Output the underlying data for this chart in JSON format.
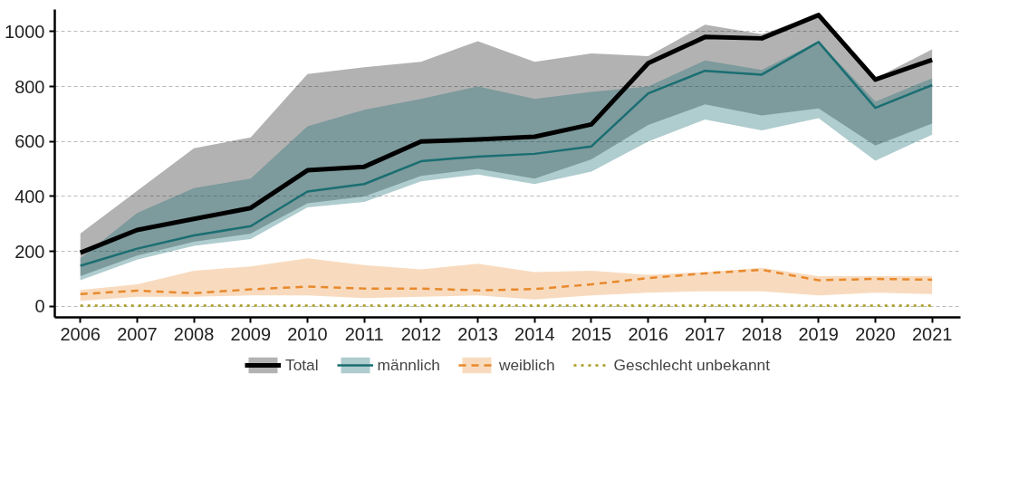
{
  "chart_data": {
    "type": "line",
    "x": [
      2006,
      2007,
      2008,
      2009,
      2010,
      2011,
      2012,
      2013,
      2014,
      2015,
      2016,
      2017,
      2018,
      2019,
      2020,
      2021
    ],
    "xlim": [
      2005.55,
      2021.5
    ],
    "xticks": [
      2006,
      2007,
      2008,
      2009,
      2010,
      2011,
      2012,
      2013,
      2014,
      2015,
      2016,
      2017,
      2018,
      2019,
      2020,
      2021
    ],
    "ylim": [
      -40,
      1080
    ],
    "yticks": [
      0,
      200,
      400,
      600,
      800,
      1000
    ],
    "grid": "y",
    "legend": "bottom",
    "series": [
      {
        "name": "Total",
        "color": "#000000",
        "line_style": "solid",
        "values": [
          195,
          278,
          318,
          358,
          495,
          508,
          600,
          607,
          617,
          662,
          885,
          980,
          975,
          1060,
          825,
          897
        ],
        "lower": [
          110,
          185,
          235,
          265,
          375,
          400,
          475,
          500,
          465,
          535,
          660,
          735,
          695,
          720,
          585,
          665
        ],
        "upper": [
          265,
          420,
          575,
          615,
          845,
          870,
          890,
          965,
          890,
          920,
          910,
          1025,
          990,
          1060,
          830,
          935
        ]
      },
      {
        "name": "männlich",
        "color": "#1a6e72",
        "line_style": "solid",
        "values": [
          148,
          210,
          258,
          292,
          418,
          445,
          528,
          545,
          555,
          582,
          775,
          857,
          843,
          962,
          722,
          805
        ],
        "lower": [
          95,
          170,
          220,
          245,
          360,
          380,
          455,
          480,
          445,
          490,
          600,
          680,
          640,
          685,
          530,
          625
        ],
        "upper": [
          175,
          340,
          430,
          465,
          655,
          715,
          755,
          800,
          755,
          780,
          800,
          895,
          860,
          965,
          745,
          830
        ]
      },
      {
        "name": "weiblich",
        "color": "#e8892c",
        "line_style": "dashed",
        "values": [
          45,
          57,
          48,
          62,
          72,
          65,
          65,
          58,
          63,
          80,
          103,
          120,
          133,
          95,
          100,
          97
        ],
        "lower": [
          20,
          35,
          35,
          40,
          40,
          30,
          35,
          40,
          25,
          40,
          50,
          55,
          55,
          40,
          50,
          45
        ],
        "upper": [
          60,
          80,
          130,
          145,
          175,
          150,
          135,
          155,
          125,
          130,
          115,
          125,
          140,
          110,
          110,
          110
        ]
      },
      {
        "name": "Geschlecht unbekannt",
        "color": "#a89a1e",
        "line_style": "dotted",
        "values": [
          3,
          3,
          3,
          3,
          3,
          3,
          3,
          3,
          3,
          3,
          3,
          3,
          3,
          3,
          3,
          3
        ]
      }
    ]
  }
}
